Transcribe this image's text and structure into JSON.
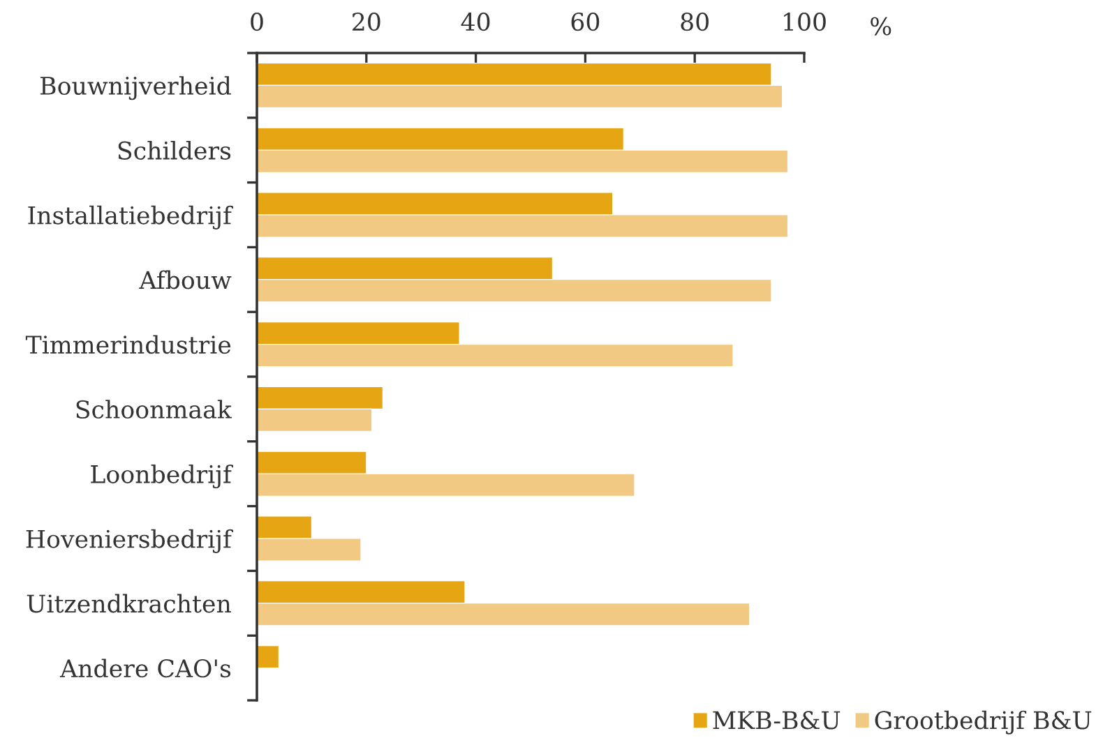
{
  "chart_data": {
    "type": "bar",
    "orientation": "horizontal",
    "xlabel": "%",
    "categories": [
      "Bouwnijverheid",
      "Schilders",
      "Installatiebedrijf",
      "Afbouw",
      "Timmerindustrie",
      "Schoonmaak",
      "Loonbedrijf",
      "Hoveniersbedrijf",
      "Uitzendkrachten",
      "Andere CAO's"
    ],
    "series": [
      {
        "name": "MKB-B&U",
        "color": "#e6a614",
        "values": [
          94,
          67,
          65,
          54,
          37,
          23,
          20,
          10,
          38,
          4
        ]
      },
      {
        "name": "Grootbedrijf B&U",
        "color": "#f2c982",
        "values": [
          96,
          97,
          97,
          94,
          87,
          21,
          69,
          19,
          90,
          null
        ]
      }
    ],
    "xlim": [
      0,
      100
    ],
    "xticks": [
      0,
      20,
      40,
      60,
      80,
      100
    ],
    "legend": "bottom right"
  }
}
